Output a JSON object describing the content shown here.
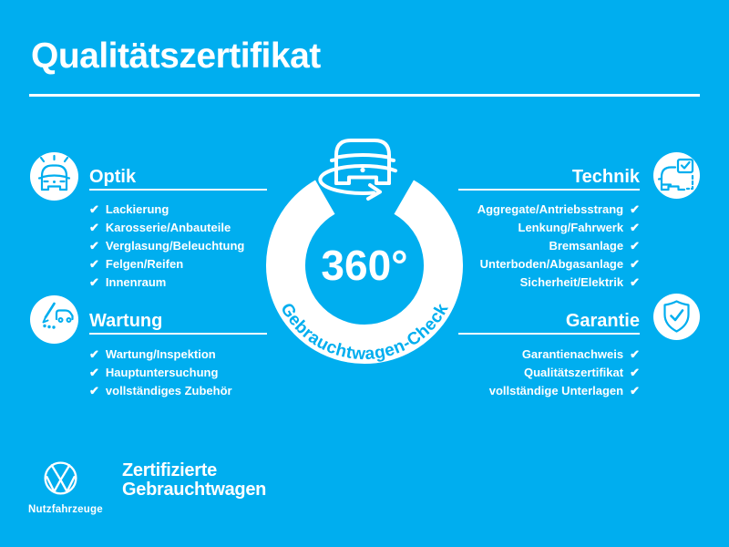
{
  "colors": {
    "background": "#00aeef",
    "foreground": "#ffffff"
  },
  "title": "Qualitätszertifikat",
  "check_glyph": "✔",
  "sections": {
    "optik": {
      "heading": "Optik",
      "items": [
        "Lackierung",
        "Karosserie/Anbauteile",
        "Verglasung/Beleuchtung",
        "Felgen/Reifen",
        "Innenraum"
      ]
    },
    "technik": {
      "heading": "Technik",
      "items": [
        "Aggregate/Antriebsstrang",
        "Lenkung/Fahrwerk",
        "Bremsanlage",
        "Unterboden/Abgasanlage",
        "Sicherheit/Elektrik"
      ]
    },
    "wartung": {
      "heading": "Wartung",
      "items": [
        "Wartung/Inspektion",
        "Hauptuntersuchung",
        "vollständiges Zubehör"
      ]
    },
    "garantie": {
      "heading": "Garantie",
      "items": [
        "Garantienachweis",
        "Qualitätszertifikat",
        "vollständige Unterlagen"
      ]
    }
  },
  "badge": {
    "value": "360°",
    "label": "Gebrauchtwagen-Check"
  },
  "footer": {
    "logo_subtitle": "Nutzfahrzeuge",
    "tagline": [
      "Zertifizierte",
      "Gebrauchtwagen"
    ]
  }
}
